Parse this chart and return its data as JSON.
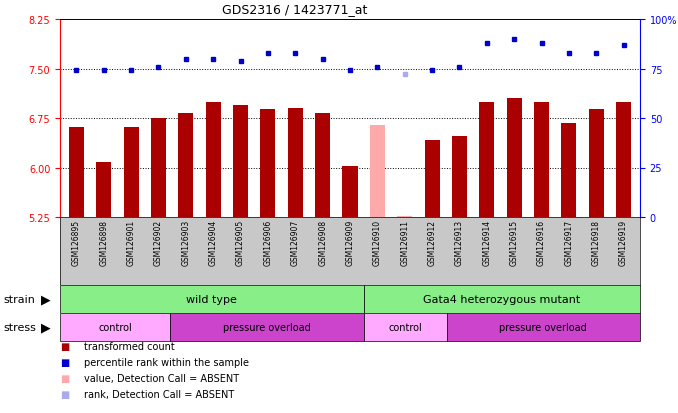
{
  "title": "GDS2316 / 1423771_at",
  "samples": [
    "GSM126895",
    "GSM126898",
    "GSM126901",
    "GSM126902",
    "GSM126903",
    "GSM126904",
    "GSM126905",
    "GSM126906",
    "GSM126907",
    "GSM126908",
    "GSM126909",
    "GSM126910",
    "GSM126911",
    "GSM126912",
    "GSM126913",
    "GSM126914",
    "GSM126915",
    "GSM126916",
    "GSM126917",
    "GSM126918",
    "GSM126919"
  ],
  "bar_values": [
    6.62,
    6.08,
    6.61,
    6.75,
    6.82,
    7.0,
    6.95,
    6.88,
    6.9,
    6.83,
    6.03,
    6.65,
    5.27,
    6.42,
    6.47,
    7.0,
    7.05,
    7.0,
    6.68,
    6.88,
    7.0
  ],
  "bar_absent": [
    false,
    false,
    false,
    false,
    false,
    false,
    false,
    false,
    false,
    false,
    false,
    true,
    true,
    false,
    false,
    false,
    false,
    false,
    false,
    false,
    false
  ],
  "rank_values": [
    74,
    74,
    74,
    76,
    80,
    80,
    79,
    83,
    83,
    80,
    74,
    76,
    72,
    74,
    76,
    88,
    90,
    88,
    83,
    83,
    87
  ],
  "rank_absent": [
    false,
    false,
    false,
    false,
    false,
    false,
    false,
    false,
    false,
    false,
    false,
    false,
    true,
    false,
    false,
    false,
    false,
    false,
    false,
    false,
    false
  ],
  "ylim_left": [
    5.25,
    8.25
  ],
  "ylim_right": [
    0,
    100
  ],
  "yticks_left": [
    5.25,
    6.0,
    6.75,
    7.5,
    8.25
  ],
  "yticks_right": [
    0,
    25,
    50,
    75,
    100
  ],
  "gridlines": [
    6.0,
    6.75,
    7.5
  ],
  "bar_color": "#aa0000",
  "bar_absent_color": "#ffaaaa",
  "rank_color": "#0000cc",
  "rank_absent_color": "#aaaaee",
  "strain_color": "#88ee88",
  "stress_control_color": "#ffaaff",
  "stress_overload_color": "#cc44cc",
  "strain_groups": [
    {
      "label": "wild type",
      "start": 0,
      "end": 10
    },
    {
      "label": "Gata4 heterozygous mutant",
      "start": 11,
      "end": 20
    }
  ],
  "stress_groups": [
    {
      "label": "control",
      "start": 0,
      "end": 3
    },
    {
      "label": "pressure overload",
      "start": 4,
      "end": 10
    },
    {
      "label": "control",
      "start": 11,
      "end": 13
    },
    {
      "label": "pressure overload",
      "start": 14,
      "end": 20
    }
  ],
  "legend_items": [
    {
      "label": "transformed count",
      "color": "#aa0000"
    },
    {
      "label": "percentile rank within the sample",
      "color": "#0000cc"
    },
    {
      "label": "value, Detection Call = ABSENT",
      "color": "#ffaaaa"
    },
    {
      "label": "rank, Detection Call = ABSENT",
      "color": "#aaaaee"
    }
  ]
}
